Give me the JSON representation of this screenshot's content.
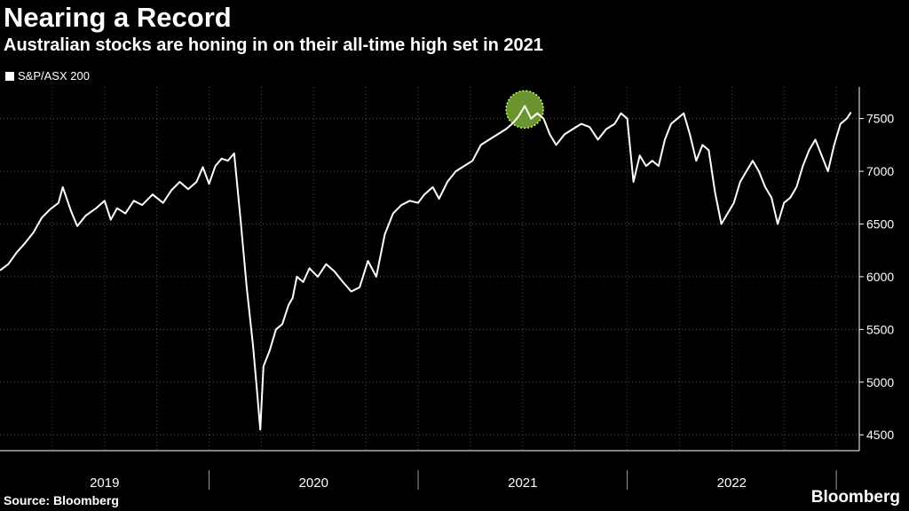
{
  "chart_data": {
    "type": "line",
    "title": "Nearing a Record",
    "subtitle": "Australian stocks are honing in on their all-time high set in 2021",
    "series": [
      {
        "name": "S&P/ASX 200",
        "color": "#ffffff",
        "points": [
          [
            2019.0,
            6060
          ],
          [
            2019.04,
            6120
          ],
          [
            2019.08,
            6230
          ],
          [
            2019.12,
            6320
          ],
          [
            2019.16,
            6420
          ],
          [
            2019.2,
            6560
          ],
          [
            2019.24,
            6640
          ],
          [
            2019.28,
            6700
          ],
          [
            2019.3,
            6850
          ],
          [
            2019.34,
            6620
          ],
          [
            2019.37,
            6480
          ],
          [
            2019.41,
            6580
          ],
          [
            2019.46,
            6650
          ],
          [
            2019.5,
            6720
          ],
          [
            2019.53,
            6540
          ],
          [
            2019.56,
            6650
          ],
          [
            2019.6,
            6600
          ],
          [
            2019.64,
            6720
          ],
          [
            2019.68,
            6680
          ],
          [
            2019.73,
            6780
          ],
          [
            2019.78,
            6700
          ],
          [
            2019.82,
            6820
          ],
          [
            2019.86,
            6900
          ],
          [
            2019.9,
            6830
          ],
          [
            2019.94,
            6900
          ],
          [
            2019.97,
            7040
          ],
          [
            2020.0,
            6880
          ],
          [
            2020.03,
            7050
          ],
          [
            2020.06,
            7120
          ],
          [
            2020.09,
            7100
          ],
          [
            2020.12,
            7170
          ],
          [
            2020.15,
            6550
          ],
          [
            2020.18,
            5900
          ],
          [
            2020.21,
            5350
          ],
          [
            2020.23,
            4900
          ],
          [
            2020.245,
            4550
          ],
          [
            2020.26,
            5150
          ],
          [
            2020.29,
            5300
          ],
          [
            2020.32,
            5500
          ],
          [
            2020.35,
            5550
          ],
          [
            2020.38,
            5730
          ],
          [
            2020.4,
            5800
          ],
          [
            2020.42,
            6000
          ],
          [
            2020.45,
            5950
          ],
          [
            2020.48,
            6080
          ],
          [
            2020.52,
            6000
          ],
          [
            2020.56,
            6120
          ],
          [
            2020.6,
            6050
          ],
          [
            2020.64,
            5950
          ],
          [
            2020.68,
            5860
          ],
          [
            2020.72,
            5900
          ],
          [
            2020.76,
            6150
          ],
          [
            2020.8,
            6000
          ],
          [
            2020.84,
            6400
          ],
          [
            2020.88,
            6600
          ],
          [
            2020.92,
            6680
          ],
          [
            2020.96,
            6720
          ],
          [
            2021.0,
            6700
          ],
          [
            2021.03,
            6780
          ],
          [
            2021.07,
            6850
          ],
          [
            2021.1,
            6740
          ],
          [
            2021.14,
            6900
          ],
          [
            2021.18,
            7000
          ],
          [
            2021.22,
            7050
          ],
          [
            2021.26,
            7100
          ],
          [
            2021.3,
            7250
          ],
          [
            2021.34,
            7300
          ],
          [
            2021.38,
            7350
          ],
          [
            2021.42,
            7400
          ],
          [
            2021.45,
            7450
          ],
          [
            2021.48,
            7520
          ],
          [
            2021.51,
            7620
          ],
          [
            2021.54,
            7500
          ],
          [
            2021.57,
            7550
          ],
          [
            2021.6,
            7500
          ],
          [
            2021.63,
            7350
          ],
          [
            2021.66,
            7250
          ],
          [
            2021.7,
            7350
          ],
          [
            2021.74,
            7400
          ],
          [
            2021.78,
            7450
          ],
          [
            2021.82,
            7420
          ],
          [
            2021.86,
            7300
          ],
          [
            2021.9,
            7400
          ],
          [
            2021.94,
            7450
          ],
          [
            2021.97,
            7550
          ],
          [
            2022.0,
            7500
          ],
          [
            2022.03,
            6900
          ],
          [
            2022.06,
            7150
          ],
          [
            2022.09,
            7050
          ],
          [
            2022.12,
            7100
          ],
          [
            2022.15,
            7050
          ],
          [
            2022.18,
            7300
          ],
          [
            2022.21,
            7450
          ],
          [
            2022.24,
            7500
          ],
          [
            2022.27,
            7550
          ],
          [
            2022.3,
            7350
          ],
          [
            2022.33,
            7100
          ],
          [
            2022.36,
            7250
          ],
          [
            2022.39,
            7200
          ],
          [
            2022.42,
            6800
          ],
          [
            2022.45,
            6500
          ],
          [
            2022.48,
            6600
          ],
          [
            2022.51,
            6700
          ],
          [
            2022.54,
            6900
          ],
          [
            2022.57,
            7000
          ],
          [
            2022.6,
            7100
          ],
          [
            2022.63,
            7000
          ],
          [
            2022.66,
            6850
          ],
          [
            2022.69,
            6750
          ],
          [
            2022.72,
            6500
          ],
          [
            2022.75,
            6700
          ],
          [
            2022.78,
            6750
          ],
          [
            2022.81,
            6850
          ],
          [
            2022.84,
            7050
          ],
          [
            2022.87,
            7200
          ],
          [
            2022.9,
            7300
          ],
          [
            2022.93,
            7150
          ],
          [
            2022.96,
            7000
          ],
          [
            2022.99,
            7250
          ],
          [
            2023.02,
            7450
          ],
          [
            2023.05,
            7500
          ],
          [
            2023.07,
            7560
          ]
        ]
      }
    ],
    "highlight": {
      "x": 2021.51,
      "y": 7620,
      "color": "#8dc63f"
    },
    "x_ticks": [
      "2019",
      "2020",
      "2021",
      "2022"
    ],
    "x_tick_values": [
      2019.5,
      2020.5,
      2021.5,
      2022.5
    ],
    "x_boundaries": [
      2020.0,
      2021.0,
      2022.0,
      2023.0
    ],
    "xlim": [
      2019.0,
      2023.11
    ],
    "y_ticks": [
      4500,
      5000,
      5500,
      6000,
      6500,
      7000,
      7500
    ],
    "ylim": [
      4350,
      7800
    ],
    "y_axis_position": "right",
    "grid": true
  },
  "legend": {
    "label": "S&P/ASX 200",
    "swatch_color": "#ffffff"
  },
  "footer": {
    "source": "Source: Bloomberg",
    "brand": "Bloomberg"
  }
}
